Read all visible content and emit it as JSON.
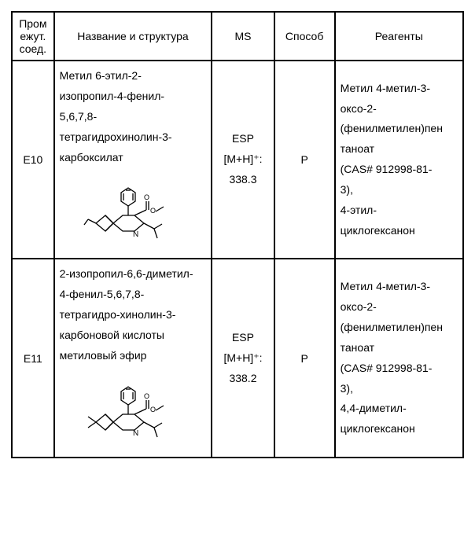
{
  "headers": {
    "id": "Пром ежут. соед.",
    "name": "Название и структура",
    "ms": "MS",
    "method": "Способ",
    "reagents": "Реагенты"
  },
  "rows": [
    {
      "id": "E10",
      "name_lines": [
        "Метил 6-этил-2-",
        "изопропил-4-фенил-",
        "5,6,7,8-",
        "тетрагидрохинолин-3-",
        "карбоксилат"
      ],
      "ms_lines": [
        "ESP",
        "[M+H]⁺:",
        "338.3"
      ],
      "method": "P",
      "reagent_lines": [
        "Метил 4-метил-3-",
        "оксо-2-",
        "(фенилметилен)пен",
        "таноат",
        "(CAS# 912998-81-",
        "3),",
        "4-этил-",
        "циклогексанон"
      ]
    },
    {
      "id": "E11",
      "name_lines": [
        "2-изопропил-6,6-диметил-",
        "4-фенил-5,6,7,8-",
        "тетрагидро-хинолин-3-",
        "карбоновой кислоты",
        "метиловый эфир"
      ],
      "ms_lines": [
        "ESP",
        "[M+H]⁺:",
        "338.2"
      ],
      "method": "P",
      "reagent_lines": [
        "Метил 4-метил-3-",
        "оксо-2-",
        "(фенилметилен)пен",
        "таноат",
        "(CAS# 912998-81-",
        "3),",
        "4,4-диметил-",
        "циклогексанон"
      ]
    }
  ]
}
